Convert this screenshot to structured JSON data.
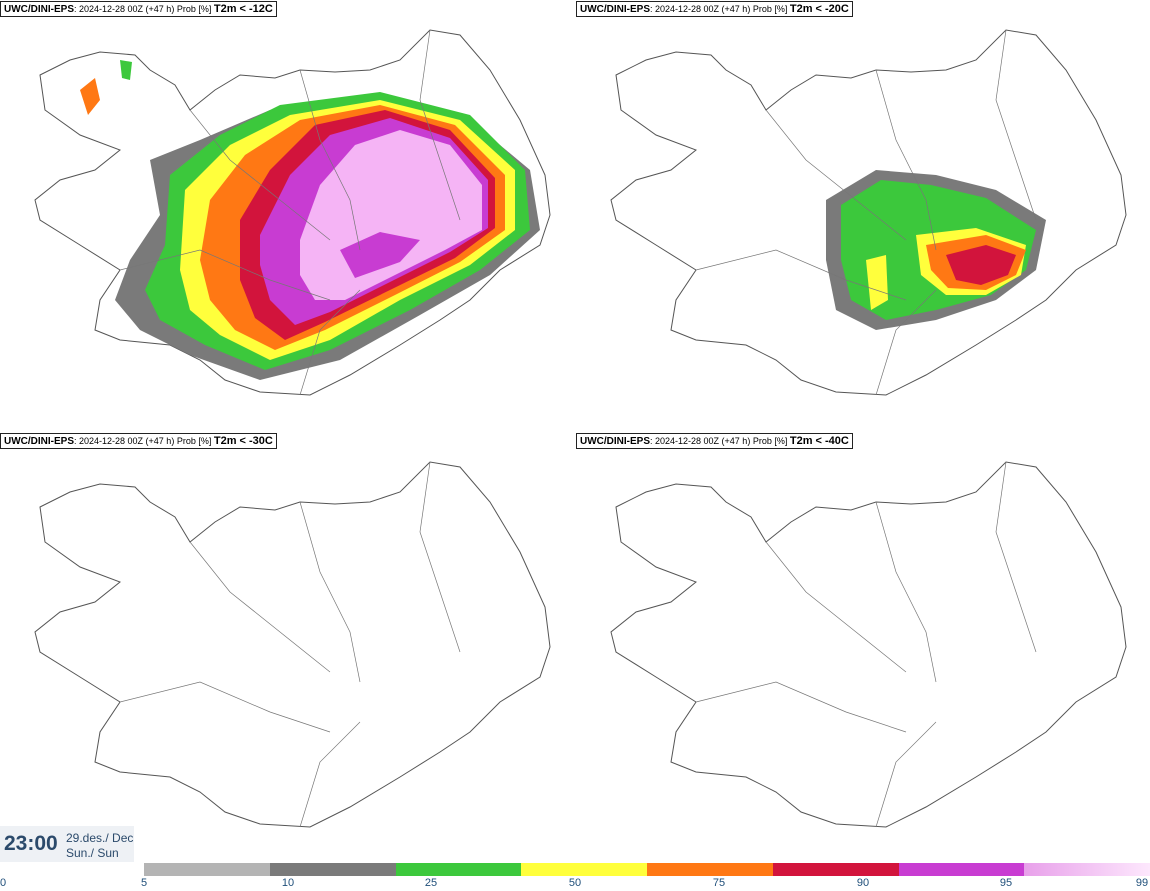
{
  "panels": [
    {
      "model": "UWC/DINI-EPS",
      "run": ": 2024-12-28 00Z (+47 h) Prob [%]",
      "variable": "T2m < -12C"
    },
    {
      "model": "UWC/DINI-EPS",
      "run": ": 2024-12-28 00Z (+47 h) Prob [%]",
      "variable": "T2m < -20C"
    },
    {
      "model": "UWC/DINI-EPS",
      "run": ": 2024-12-28 00Z (+47 h) Prob [%]",
      "variable": "T2m < -30C"
    },
    {
      "model": "UWC/DINI-EPS",
      "run": ": 2024-12-28 00Z (+47 h) Prob [%]",
      "variable": "T2m < -40C"
    }
  ],
  "valid_time": {
    "time": "23:00",
    "date": "29.des./ Dec",
    "day": "Sun./ Sun"
  },
  "colorbar": {
    "ticks": [
      "0",
      "5",
      "10",
      "25",
      "50",
      "75",
      "90",
      "95",
      "99"
    ],
    "colors": [
      "#b4b4b4",
      "#7a7a7a",
      "#3cc83c",
      "#ffff3c",
      "#ff7814",
      "#d2143c",
      "#c83cd2",
      "#f5b4f5"
    ]
  }
}
